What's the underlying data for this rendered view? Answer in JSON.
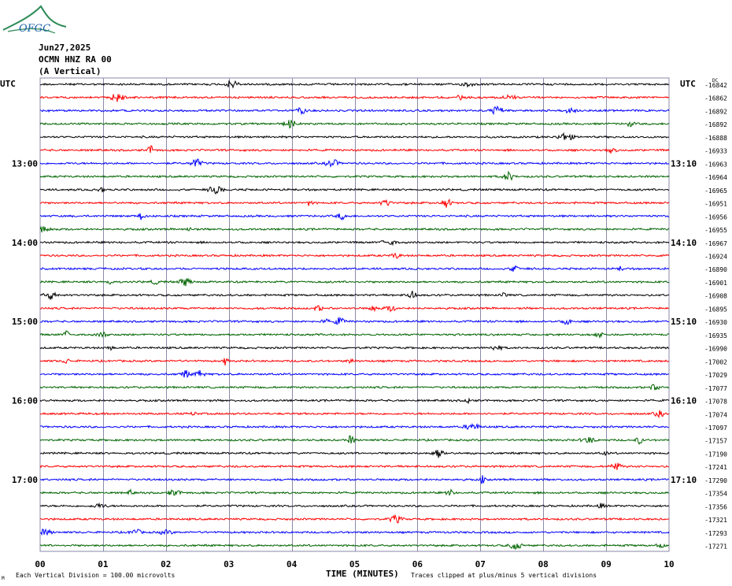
{
  "logo_text": "OFGC",
  "header": {
    "date": "Jun27,2025",
    "station": "OCMN HNZ RA 00",
    "component": "(A Vertical)"
  },
  "utc_left": "UTC",
  "utc_right": "UTC",
  "dc_label": "DC",
  "footer": {
    "scale_note": "Each Vertical Division =  100.00 microvolts",
    "clip_note": "Traces clipped at plus/minus 5 vertical divisions",
    "corner_mark": "M"
  },
  "colors": {
    "black": "#000000",
    "red": "#ff0000",
    "blue": "#0000ff",
    "green": "#006400",
    "grid": "#8a8aaa"
  },
  "chart_data": {
    "type": "line",
    "title": "",
    "xlabel": "TIME (MINUTES)",
    "ylabel": "",
    "xlim": [
      0,
      10
    ],
    "x_ticks": [
      "00",
      "01",
      "02",
      "03",
      "04",
      "05",
      "06",
      "07",
      "08",
      "09",
      "10"
    ],
    "trace_colors": [
      "black",
      "red",
      "blue",
      "green"
    ],
    "left_hour_labels": [
      {
        "trace_index": 6,
        "label": "13:00"
      },
      {
        "trace_index": 12,
        "label": "14:00"
      },
      {
        "trace_index": 18,
        "label": "15:00"
      },
      {
        "trace_index": 24,
        "label": "16:00"
      },
      {
        "trace_index": 30,
        "label": "17:00"
      }
    ],
    "right_hour_labels": [
      {
        "trace_index": 6,
        "label": "13:10"
      },
      {
        "trace_index": 12,
        "label": "14:10"
      },
      {
        "trace_index": 18,
        "label": "15:10"
      },
      {
        "trace_index": 24,
        "label": "16:10"
      },
      {
        "trace_index": 30,
        "label": "17:10"
      }
    ],
    "dc_offsets": [
      -16842,
      -16862,
      -16892,
      -16892,
      -16888,
      -16933,
      -16963,
      -16964,
      -16965,
      -16951,
      -16956,
      -16955,
      -16967,
      -16924,
      -16890,
      -16901,
      -16908,
      -16895,
      -16930,
      -16935,
      -16990,
      -17002,
      -17029,
      -17077,
      -17078,
      -17074,
      -17097,
      -17157,
      -17190,
      -17241,
      -17290,
      -17354,
      -17356,
      -17321,
      -17293,
      -17271
    ]
  }
}
